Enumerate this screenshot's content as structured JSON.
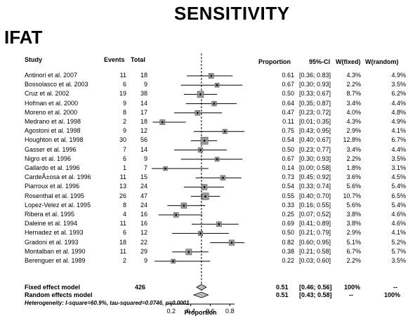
{
  "title": "SENSITIVITY",
  "subtitle": "IFAT",
  "headers": {
    "study": "Study",
    "events": "Events",
    "total": "Total",
    "proportion": "Proportion",
    "ci": "95%-CI",
    "wfixed": "W(fixed)",
    "wrandom": "W(random)"
  },
  "rows": [
    {
      "study": "Antinori et al. 2007",
      "events": "11",
      "total": "18",
      "prop": "0.61",
      "ci": "[0.36; 0.83]",
      "wf": "4.3%",
      "wr": "4.9%"
    },
    {
      "study": "Bossolasco et al. 2003",
      "events": "6",
      "total": "9",
      "prop": "0.67",
      "ci": "[0.30; 0.93]",
      "wf": "2.2%",
      "wr": "3.5%"
    },
    {
      "study": "Cruz et al. 2002",
      "events": "19",
      "total": "38",
      "prop": "0.50",
      "ci": "[0.33; 0.67]",
      "wf": "8.7%",
      "wr": "6.2%"
    },
    {
      "study": "Hofman et al. 2000",
      "events": "9",
      "total": "14",
      "prop": "0.64",
      "ci": "[0.35; 0.87]",
      "wf": "3.4%",
      "wr": "4.4%"
    },
    {
      "study": "Moreno et al. 2000",
      "events": "8",
      "total": "17",
      "prop": "0.47",
      "ci": "[0.23; 0.72]",
      "wf": "4.0%",
      "wr": "4.8%"
    },
    {
      "study": "Medrano et al. 1998",
      "events": "2",
      "total": "18",
      "prop": "0.11",
      "ci": "[0.01; 0.35]",
      "wf": "4.3%",
      "wr": "4.9%"
    },
    {
      "study": "Agostoni et al. 1998",
      "events": "9",
      "total": "12",
      "prop": "0.75",
      "ci": "[0.43; 0.95]",
      "wf": "2.9%",
      "wr": "4.1%"
    },
    {
      "study": "Houghton et al. 1998",
      "events": "30",
      "total": "56",
      "prop": "0.54",
      "ci": "[0.40; 0.67]",
      "wf": "12.8%",
      "wr": "6.7%"
    },
    {
      "study": "Gasser et al. 1996",
      "events": "7",
      "total": "14",
      "prop": "0.50",
      "ci": "[0.23; 0.77]",
      "wf": "3.4%",
      "wr": "4.4%"
    },
    {
      "study": "Nigro et al. 1996",
      "events": "6",
      "total": "9",
      "prop": "0.67",
      "ci": "[0.30; 0.93]",
      "wf": "2.2%",
      "wr": "3.5%"
    },
    {
      "study": "Gallardo et al. 1996",
      "events": "1",
      "total": "7",
      "prop": "0.14",
      "ci": "[0.00; 0.58]",
      "wf": "1.8%",
      "wr": "3.1%"
    },
    {
      "study": "CardeÃ±osa et al. 1996",
      "events": "11",
      "total": "15",
      "prop": "0.73",
      "ci": "[0.45; 0.92]",
      "wf": "3.6%",
      "wr": "4.5%"
    },
    {
      "study": "Piarroux et al. 1996",
      "events": "13",
      "total": "24",
      "prop": "0.54",
      "ci": "[0.33; 0.74]",
      "wf": "5.6%",
      "wr": "5.4%"
    },
    {
      "study": "Rosenthal et al. 1995",
      "events": "26",
      "total": "47",
      "prop": "0.55",
      "ci": "[0.40; 0.70]",
      "wf": "10.7%",
      "wr": "6.5%"
    },
    {
      "study": "Lopez-Velez et al. 1995",
      "events": "8",
      "total": "24",
      "prop": "0.33",
      "ci": "[0.16; 0.55]",
      "wf": "5.6%",
      "wr": "5.4%"
    },
    {
      "study": "Ribera et al. 1995",
      "events": "4",
      "total": "16",
      "prop": "0.25",
      "ci": "[0.07; 0.52]",
      "wf": "3.8%",
      "wr": "4.6%"
    },
    {
      "study": "Daleine et al. 1994",
      "events": "11",
      "total": "16",
      "prop": "0.69",
      "ci": "[0.41; 0.89]",
      "wf": "3.8%",
      "wr": "4.6%"
    },
    {
      "study": "Hernadez et al. 1993",
      "events": "6",
      "total": "12",
      "prop": "0.50",
      "ci": "[0.21; 0.79]",
      "wf": "2.9%",
      "wr": "4.1%"
    },
    {
      "study": "Gradoni et al. 1993",
      "events": "18",
      "total": "22",
      "prop": "0.82",
      "ci": "[0.60; 0.95]",
      "wf": "5.1%",
      "wr": "5.2%"
    },
    {
      "study": "Montalban et al. 1990",
      "events": "11",
      "total": "29",
      "prop": "0.38",
      "ci": "[0.21; 0.58]",
      "wf": "6.7%",
      "wr": "5.7%"
    },
    {
      "study": "Berenguer et al. 1989",
      "events": "2",
      "total": "9",
      "prop": "0.22",
      "ci": "[0.03; 0.60]",
      "wf": "2.2%",
      "wr": "3.5%"
    }
  ],
  "fixed": {
    "label": "Fixed effect model",
    "total": "426",
    "prop": "0.51",
    "ci": "[0.46; 0.56]",
    "wf": "100%",
    "wr": "--"
  },
  "random": {
    "label": "Random effects model",
    "prop": "0.51",
    "ci": "[0.43; 0.58]",
    "wf": "--",
    "wr": "100%"
  },
  "heterogeneity": "Heterogeneity: I-square=60.9%, tau-squared=0.0746, p=0.0001",
  "chart_data": {
    "type": "scatter",
    "title": "SENSITIVITY",
    "subtitle": "IFAT",
    "xlabel": "Proportion",
    "xticks": [
      0.2,
      0.4,
      0.6,
      0.8
    ],
    "xlim": [
      0,
      1
    ],
    "reference_line": 0.51,
    "points": [
      {
        "study": "Antinori et al. 2007",
        "est": 0.61,
        "lo": 0.36,
        "hi": 0.83,
        "w": 4.3
      },
      {
        "study": "Bossolasco et al. 2003",
        "est": 0.67,
        "lo": 0.3,
        "hi": 0.93,
        "w": 2.2
      },
      {
        "study": "Cruz et al. 2002",
        "est": 0.5,
        "lo": 0.33,
        "hi": 0.67,
        "w": 8.7
      },
      {
        "study": "Hofman et al. 2000",
        "est": 0.64,
        "lo": 0.35,
        "hi": 0.87,
        "w": 3.4
      },
      {
        "study": "Moreno et al. 2000",
        "est": 0.47,
        "lo": 0.23,
        "hi": 0.72,
        "w": 4.0
      },
      {
        "study": "Medrano et al. 1998",
        "est": 0.11,
        "lo": 0.01,
        "hi": 0.35,
        "w": 4.3
      },
      {
        "study": "Agostoni et al. 1998",
        "est": 0.75,
        "lo": 0.43,
        "hi": 0.95,
        "w": 2.9
      },
      {
        "study": "Houghton et al. 1998",
        "est": 0.54,
        "lo": 0.4,
        "hi": 0.67,
        "w": 12.8
      },
      {
        "study": "Gasser et al. 1996",
        "est": 0.5,
        "lo": 0.23,
        "hi": 0.77,
        "w": 3.4
      },
      {
        "study": "Nigro et al. 1996",
        "est": 0.67,
        "lo": 0.3,
        "hi": 0.93,
        "w": 2.2
      },
      {
        "study": "Gallardo et al. 1996",
        "est": 0.14,
        "lo": 0.0,
        "hi": 0.58,
        "w": 1.8
      },
      {
        "study": "CardeÃ±osa et al. 1996",
        "est": 0.73,
        "lo": 0.45,
        "hi": 0.92,
        "w": 3.6
      },
      {
        "study": "Piarroux et al. 1996",
        "est": 0.54,
        "lo": 0.33,
        "hi": 0.74,
        "w": 5.6
      },
      {
        "study": "Rosenthal et al. 1995",
        "est": 0.55,
        "lo": 0.4,
        "hi": 0.7,
        "w": 10.7
      },
      {
        "study": "Lopez-Velez et al. 1995",
        "est": 0.33,
        "lo": 0.16,
        "hi": 0.55,
        "w": 5.6
      },
      {
        "study": "Ribera et al. 1995",
        "est": 0.25,
        "lo": 0.07,
        "hi": 0.52,
        "w": 3.8
      },
      {
        "study": "Daleine et al. 1994",
        "est": 0.69,
        "lo": 0.41,
        "hi": 0.89,
        "w": 3.8
      },
      {
        "study": "Hernadez et al. 1993",
        "est": 0.5,
        "lo": 0.21,
        "hi": 0.79,
        "w": 2.9
      },
      {
        "study": "Gradoni et al. 1993",
        "est": 0.82,
        "lo": 0.6,
        "hi": 0.95,
        "w": 5.1
      },
      {
        "study": "Montalban et al. 1990",
        "est": 0.38,
        "lo": 0.21,
        "hi": 0.58,
        "w": 6.7
      },
      {
        "study": "Berenguer et al. 1989",
        "est": 0.22,
        "lo": 0.03,
        "hi": 0.6,
        "w": 2.2
      }
    ],
    "summary": [
      {
        "label": "Fixed effect model",
        "est": 0.51,
        "lo": 0.46,
        "hi": 0.56
      },
      {
        "label": "Random effects model",
        "est": 0.51,
        "lo": 0.43,
        "hi": 0.58
      }
    ]
  }
}
